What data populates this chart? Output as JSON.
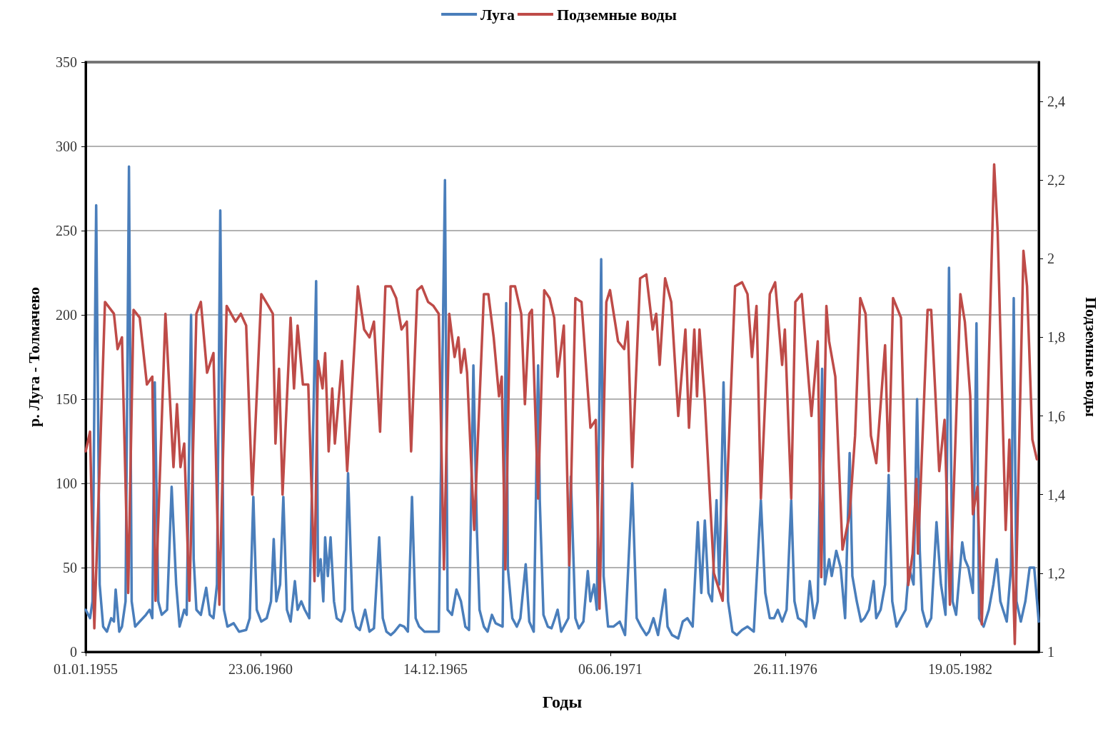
{
  "chart_data": {
    "type": "line",
    "xlabel": "Годы",
    "ylabel": "р. Луга - Толмачево",
    "y2label": "Подземные воды",
    "legend": "top",
    "grid": "y",
    "marker": "none",
    "line_style": "solid",
    "xlim": [
      "1955-01-01",
      "1984-11-01"
    ],
    "xticks": [
      {
        "value": "1955-01-01",
        "label": "01.01.1955"
      },
      {
        "value": "1960-06-23",
        "label": "23.06.1960"
      },
      {
        "value": "1965-12-14",
        "label": "14.12.1965"
      },
      {
        "value": "1971-06-06",
        "label": "06.06.1971"
      },
      {
        "value": "1976-11-26",
        "label": "26.11.1976"
      },
      {
        "value": "1982-05-19",
        "label": "19.05.1982"
      }
    ],
    "ylim": [
      0,
      350
    ],
    "yticks": [
      0,
      50,
      100,
      150,
      200,
      250,
      300,
      350
    ],
    "y2lim": [
      1,
      2.5
    ],
    "y2ticks": [
      1,
      {
        "value": 1.2,
        "label": "1,2"
      },
      {
        "value": 1.4,
        "label": "1,4"
      },
      {
        "value": 1.6,
        "label": "1,6"
      },
      {
        "value": 1.8,
        "label": "1,8"
      },
      2,
      {
        "value": 2.2,
        "label": "2,2"
      },
      {
        "value": 2.4,
        "label": "2,4"
      }
    ],
    "series": [
      {
        "name": "Луга",
        "color": "#4a7ebb",
        "x": [
          "1955-01-01",
          "1955-02-20",
          "1955-03-20",
          "1955-05-01",
          "1955-06-10",
          "1955-07-20",
          "1955-09-01",
          "1955-10-20",
          "1955-11-20",
          "1955-12-10",
          "1956-01-20",
          "1956-02-20",
          "1956-04-01",
          "1956-05-10",
          "1956-06-10",
          "1956-07-20",
          "1956-09-10",
          "1956-11-20",
          "1957-01-01",
          "1957-02-01",
          "1957-03-01",
          "1957-04-10",
          "1957-05-20",
          "1957-07-20",
          "1957-09-10",
          "1957-11-01",
          "1957-12-10",
          "1958-02-01",
          "1958-03-01",
          "1958-04-20",
          "1958-05-20",
          "1958-06-20",
          "1958-08-10",
          "1958-10-10",
          "1958-11-20",
          "1959-01-01",
          "1959-02-10",
          "1959-03-20",
          "1959-05-01",
          "1959-06-10",
          "1959-08-20",
          "1959-10-20",
          "1960-01-10",
          "1960-02-20",
          "1960-04-01",
          "1960-05-10",
          "1960-07-01",
          "1960-09-01",
          "1960-10-20",
          "1960-11-20",
          "1960-12-20",
          "1961-02-01",
          "1961-03-10",
          "1961-04-20",
          "1961-06-01",
          "1961-07-20",
          "1961-08-20",
          "1961-10-01",
          "1961-11-10",
          "1962-01-01",
          "1962-03-20",
          "1962-04-10",
          "1962-05-10",
          "1962-06-10",
          "1962-07-01",
          "1962-08-01",
          "1962-09-01",
          "1962-10-10",
          "1962-11-10",
          "1963-01-01",
          "1963-02-10",
          "1963-03-20",
          "1963-05-10",
          "1963-06-20",
          "1963-08-01",
          "1963-10-01",
          "1963-11-20",
          "1964-01-10",
          "1964-03-10",
          "1964-04-20",
          "1964-06-01",
          "1964-07-20",
          "1964-09-01",
          "1964-11-01",
          "1964-12-20",
          "1965-02-01",
          "1965-03-20",
          "1965-05-01",
          "1965-06-10",
          "1965-08-10",
          "1965-11-01",
          "1966-01-20",
          "1966-04-01",
          "1966-05-01",
          "1966-06-20",
          "1966-08-10",
          "1966-10-01",
          "1966-11-20",
          "1967-01-01",
          "1967-02-20",
          "1967-04-01",
          "1967-05-01",
          "1967-06-20",
          "1967-08-01",
          "1967-09-20",
          "1967-11-01",
          "1968-01-20",
          "1968-03-01",
          "1968-03-20",
          "1968-05-10",
          "1968-07-01",
          "1968-08-10",
          "1968-10-10",
          "1968-11-20",
          "1969-01-10",
          "1969-03-01",
          "1969-03-20",
          "1969-05-01",
          "1969-06-20",
          "1969-08-01",
          "1969-09-10",
          "1969-10-10",
          "1969-11-20",
          "1970-02-10",
          "1970-03-10",
          "1970-05-01",
          "1970-06-10",
          "1970-08-01",
          "1970-09-20",
          "1970-10-20",
          "1970-12-01",
          "1971-01-01",
          "1971-02-20",
          "1971-03-20",
          "1971-05-10",
          "1971-07-10",
          "1971-09-20",
          "1971-11-20",
          "1972-02-10",
          "1972-04-01",
          "1972-05-20",
          "1972-07-20",
          "1972-08-20",
          "1972-10-10",
          "1972-12-01",
          "1973-02-20",
          "1973-03-20",
          "1973-05-10",
          "1973-07-20",
          "1973-09-10",
          "1973-11-01",
          "1974-01-01",
          "1974-03-01",
          "1974-04-10",
          "1974-05-20",
          "1974-07-01",
          "1974-08-10",
          "1974-10-01",
          "1974-11-01",
          "1974-12-20",
          "1975-02-10",
          "1975-04-01",
          "1975-05-20",
          "1975-07-20",
          "1975-09-20",
          "1975-12-01",
          "1976-02-20",
          "1976-04-10",
          "1976-06-01",
          "1976-07-20",
          "1976-09-01",
          "1976-10-20",
          "1976-12-10",
          "1977-02-01",
          "1977-03-10",
          "1977-04-20",
          "1977-06-20",
          "1977-07-20",
          "1977-09-01",
          "1977-10-20",
          "1977-12-01",
          "1978-01-20",
          "1978-02-20",
          "1978-04-10",
          "1978-05-10",
          "1978-07-01",
          "1978-08-20",
          "1978-10-10",
          "1978-12-01",
          "1979-01-01",
          "1979-02-20",
          "1979-04-10",
          "1979-05-20",
          "1979-07-10",
          "1979-09-01",
          "1979-10-01",
          "1979-11-20",
          "1980-01-10",
          "1980-02-20",
          "1980-04-01",
          "1980-05-20",
          "1980-07-10",
          "1980-09-01",
          "1980-10-10",
          "1980-12-01",
          "1981-01-10",
          "1981-02-10",
          "1981-03-10",
          "1981-05-01",
          "1981-06-20",
          "1981-08-20",
          "1981-10-10",
          "1981-12-01",
          "1982-01-10",
          "1982-02-20",
          "1982-04-01",
          "1982-06-10",
          "1982-07-10",
          "1982-08-20",
          "1982-10-10",
          "1982-11-20",
          "1982-12-20",
          "1983-02-10",
          "1983-04-10",
          "1983-06-01",
          "1983-07-10",
          "1983-08-20",
          "1983-11-01",
          "1983-12-20",
          "1984-01-20",
          "1984-02-20",
          "1984-04-10",
          "1984-06-01",
          "1984-07-20",
          "1984-09-10",
          "1984-11-01"
        ],
        "values": [
          25,
          20,
          30,
          265,
          40,
          15,
          12,
          20,
          18,
          37,
          12,
          15,
          30,
          288,
          30,
          15,
          18,
          22,
          25,
          20,
          160,
          30,
          22,
          25,
          98,
          40,
          15,
          25,
          22,
          200,
          55,
          25,
          22,
          38,
          22,
          20,
          40,
          262,
          25,
          15,
          17,
          12,
          13,
          20,
          92,
          25,
          18,
          20,
          30,
          67,
          30,
          40,
          92,
          25,
          18,
          42,
          25,
          30,
          25,
          20,
          220,
          45,
          55,
          30,
          68,
          45,
          68,
          30,
          20,
          18,
          25,
          106,
          25,
          15,
          13,
          25,
          12,
          14,
          68,
          20,
          12,
          10,
          12,
          16,
          15,
          12,
          92,
          20,
          15,
          12,
          12,
          12,
          280,
          25,
          22,
          37,
          30,
          15,
          13,
          170,
          72,
          25,
          15,
          12,
          22,
          17,
          15,
          207,
          50,
          20,
          15,
          20,
          52,
          18,
          12,
          170,
          90,
          22,
          15,
          14,
          20,
          25,
          12,
          20,
          104,
          20,
          14,
          18,
          48,
          30,
          40,
          25,
          233,
          45,
          15,
          15,
          18,
          10,
          100,
          20,
          15,
          10,
          12,
          20,
          10,
          37,
          15,
          10,
          8,
          18,
          20,
          15,
          77,
          35,
          78,
          35,
          30,
          90,
          40,
          160,
          30,
          12,
          10,
          13,
          15,
          12,
          90,
          35,
          20,
          20,
          25,
          18,
          25,
          90,
          30,
          20,
          18,
          15,
          42,
          20,
          30,
          168,
          40,
          55,
          45,
          60,
          50,
          20,
          118,
          45,
          30,
          18,
          20,
          25,
          42,
          20,
          25,
          40,
          105,
          30,
          15,
          20,
          25,
          50,
          40,
          150,
          60,
          25,
          15,
          20,
          77,
          40,
          22,
          228,
          30,
          22,
          65,
          55,
          50,
          35,
          195,
          20,
          15,
          25,
          40,
          55,
          30,
          18,
          50,
          210,
          30,
          18,
          30,
          50,
          50,
          18
        ]
      },
      {
        "name": "Подземные воды",
        "color": "#be4b48",
        "axis": "y2",
        "x": [
          "1955-01-01",
          "1955-02-20",
          "1955-04-10",
          "1955-08-10",
          "1955-11-20",
          "1956-01-01",
          "1956-02-20",
          "1956-05-01",
          "1956-07-01",
          "1956-09-10",
          "1956-12-01",
          "1957-02-01",
          "1957-03-10",
          "1957-07-01",
          "1957-10-01",
          "1957-11-10",
          "1957-12-20",
          "1958-02-01",
          "1958-04-01",
          "1958-06-20",
          "1958-08-10",
          "1958-10-20",
          "1959-01-01",
          "1959-03-10",
          "1959-06-01",
          "1959-09-10",
          "1959-11-10",
          "1960-01-10",
          "1960-03-20",
          "1960-07-01",
          "1960-09-20",
          "1960-11-10",
          "1960-12-10",
          "1961-01-20",
          "1961-03-01",
          "1961-06-01",
          "1961-07-10",
          "1961-08-20",
          "1961-10-20",
          "1961-12-20",
          "1962-03-01",
          "1962-04-10",
          "1962-06-01",
          "1962-07-01",
          "1962-08-10",
          "1962-09-20",
          "1962-10-20",
          "1963-01-10",
          "1963-03-10",
          "1963-07-10",
          "1963-09-20",
          "1963-11-20",
          "1964-01-10",
          "1964-03-20",
          "1964-05-20",
          "1964-07-20",
          "1964-09-20",
          "1964-11-20",
          "1965-01-20",
          "1965-03-10",
          "1965-05-20",
          "1965-07-10",
          "1965-09-20",
          "1965-11-20",
          "1966-01-20",
          "1966-03-20",
          "1966-05-20",
          "1966-07-20",
          "1966-09-01",
          "1966-10-01",
          "1966-11-10",
          "1966-12-10",
          "1967-03-01",
          "1967-06-20",
          "1967-08-10",
          "1967-10-10",
          "1967-12-10",
          "1968-01-10",
          "1968-02-20",
          "1968-04-20",
          "1968-06-10",
          "1968-08-20",
          "1968-10-01",
          "1968-11-20",
          "1968-12-20",
          "1969-03-01",
          "1969-05-10",
          "1969-07-10",
          "1969-09-01",
          "1969-10-10",
          "1969-12-20",
          "1970-02-20",
          "1970-05-01",
          "1970-07-10",
          "1970-10-20",
          "1970-12-20",
          "1971-02-01",
          "1971-04-20",
          "1971-06-01",
          "1971-09-01",
          "1971-11-10",
          "1971-12-20",
          "1972-02-10",
          "1972-05-10",
          "1972-07-20",
          "1972-10-01",
          "1972-11-10",
          "1972-12-20",
          "1973-02-20",
          "1973-05-01",
          "1973-07-20",
          "1973-10-10",
          "1973-11-20",
          "1974-01-20",
          "1974-02-20",
          "1974-03-20",
          "1974-05-20",
          "1974-09-01",
          "1974-12-10",
          "1975-05-01",
          "1975-07-20",
          "1975-09-20",
          "1975-11-10",
          "1976-01-01",
          "1976-02-20",
          "1976-06-01",
          "1976-08-01",
          "1976-10-20",
          "1976-11-20",
          "1977-02-01",
          "1977-03-20",
          "1977-06-01",
          "1977-09-20",
          "1977-12-01",
          "1978-01-10",
          "1978-03-10",
          "1978-04-10",
          "1978-06-20",
          "1978-09-10",
          "1978-12-01",
          "1979-02-01",
          "1979-04-01",
          "1979-06-01",
          "1979-08-01",
          "1979-10-01",
          "1980-01-10",
          "1980-02-20",
          "1980-04-10",
          "1980-07-10",
          "1980-10-01",
          "1980-11-20",
          "1981-01-01",
          "1981-01-20",
          "1981-05-10",
          "1981-06-20",
          "1981-09-20",
          "1981-11-20",
          "1982-01-20",
          "1982-05-20",
          "1982-07-10",
          "1982-09-10",
          "1982-10-10",
          "1982-12-01",
          "1983-01-20",
          "1983-06-10",
          "1983-07-20",
          "1983-10-20",
          "1983-12-01",
          "1984-02-01",
          "1984-05-10",
          "1984-06-20",
          "1984-08-20",
          "1984-10-10"
        ],
        "values": [
          1.51,
          1.56,
          1.06,
          1.89,
          1.86,
          1.77,
          1.8,
          1.15,
          1.87,
          1.85,
          1.68,
          1.7,
          1.13,
          1.86,
          1.47,
          1.63,
          1.47,
          1.53,
          1.13,
          1.86,
          1.89,
          1.71,
          1.76,
          1.12,
          1.88,
          1.84,
          1.86,
          1.83,
          1.4,
          1.91,
          1.88,
          1.86,
          1.53,
          1.72,
          1.4,
          1.85,
          1.67,
          1.83,
          1.68,
          1.68,
          1.18,
          1.74,
          1.67,
          1.76,
          1.51,
          1.67,
          1.53,
          1.74,
          1.46,
          1.93,
          1.82,
          1.8,
          1.84,
          1.56,
          1.93,
          1.93,
          1.9,
          1.82,
          1.84,
          1.51,
          1.92,
          1.93,
          1.89,
          1.88,
          1.86,
          1.21,
          1.86,
          1.75,
          1.8,
          1.71,
          1.77,
          1.71,
          1.31,
          1.91,
          1.91,
          1.8,
          1.65,
          1.7,
          1.21,
          1.93,
          1.93,
          1.86,
          1.63,
          1.86,
          1.87,
          1.39,
          1.92,
          1.9,
          1.85,
          1.7,
          1.83,
          1.22,
          1.9,
          1.89,
          1.57,
          1.59,
          1.11,
          1.89,
          1.92,
          1.79,
          1.77,
          1.84,
          1.47,
          1.95,
          1.96,
          1.82,
          1.86,
          1.73,
          1.95,
          1.89,
          1.6,
          1.82,
          1.57,
          1.82,
          1.65,
          1.82,
          1.64,
          1.2,
          1.13,
          1.93,
          1.94,
          1.91,
          1.75,
          1.88,
          1.39,
          1.91,
          1.94,
          1.73,
          1.82,
          1.39,
          1.89,
          1.91,
          1.6,
          1.79,
          1.19,
          1.88,
          1.79,
          1.7,
          1.26,
          1.35,
          1.55,
          1.9,
          1.86,
          1.55,
          1.48,
          1.78,
          1.46,
          1.9,
          1.85,
          1.17,
          1.25,
          1.44,
          1.25,
          1.87,
          1.87,
          1.46,
          1.59,
          1.12,
          1.91,
          1.84,
          1.65,
          1.35,
          1.42,
          1.07,
          2.24,
          2.07,
          1.31,
          1.54,
          1.02,
          2.02,
          1.93,
          1.54,
          1.49
        ]
      }
    ]
  }
}
